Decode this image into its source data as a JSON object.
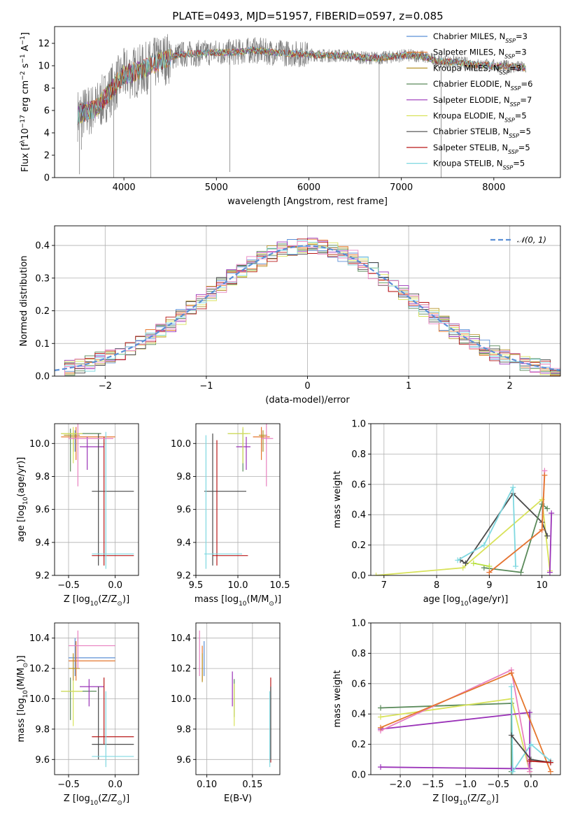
{
  "figure": {
    "title": "PLATE=0493, MJD=51957, FIBERID=0597, z=0.085"
  },
  "colors": {
    "Chabrier MILES": "#5b8fd6",
    "Salpeter MILES": "#e5772d",
    "Kroupa MILES": "#b8942a",
    "Chabrier ELODIE": "#5a8a5a",
    "Salpeter ELODIE": "#9a32b8",
    "Kroupa ELODIE": "#d8e25a",
    "Chabrier STELIB": "#4a4a4a",
    "Salpeter STELIB": "#b81818",
    "Kroupa STELIB": "#7fd8e0",
    "pink": "#e880c0",
    "lime": "#b8e040",
    "data": "#808080"
  },
  "chart_data": [
    {
      "id": "spectrum",
      "type": "line",
      "xlabel": "wavelength [Angstrom, rest frame]",
      "ylabel_parts": [
        "Flux [f",
        "λ",
        "10",
        "−17",
        " erg cm",
        "−2",
        " s",
        "−1",
        " A",
        "−1",
        "]"
      ],
      "xlim": [
        3250,
        8720
      ],
      "ylim": [
        0,
        13.5
      ],
      "xticks": [
        4000,
        5000,
        6000,
        7000,
        8000
      ],
      "yticks": [
        0,
        2,
        4,
        6,
        8,
        10,
        12
      ],
      "legend_position": "top-right",
      "legend": [
        {
          "name": "Chabrier MILES",
          "n": "3"
        },
        {
          "name": "Salpeter MILES",
          "n": "3"
        },
        {
          "name": "Kroupa MILES",
          "n": "3"
        },
        {
          "name": "Chabrier ELODIE",
          "n": "6"
        },
        {
          "name": "Salpeter ELODIE",
          "n": "7"
        },
        {
          "name": "Kroupa ELODIE",
          "n": "5"
        },
        {
          "name": "Chabrier STELIB",
          "n": "5"
        },
        {
          "name": "Salpeter STELIB",
          "n": "5"
        },
        {
          "name": "Kroupa STELIB",
          "n": "5"
        }
      ],
      "continuum": [
        [
          3500,
          5.6
        ],
        [
          3700,
          6.2
        ],
        [
          3900,
          8.2
        ],
        [
          4000,
          9.2
        ],
        [
          4200,
          9.6
        ],
        [
          4400,
          10.5
        ],
        [
          4600,
          11.0
        ],
        [
          4800,
          11.1
        ],
        [
          5000,
          11.2
        ],
        [
          5200,
          11.2
        ],
        [
          5400,
          11.4
        ],
        [
          5600,
          11.2
        ],
        [
          5800,
          11.1
        ],
        [
          6000,
          11.0
        ],
        [
          6200,
          10.9
        ],
        [
          6400,
          10.9
        ],
        [
          6600,
          10.7
        ],
        [
          6800,
          10.7
        ],
        [
          7000,
          10.9
        ],
        [
          7200,
          10.9
        ],
        [
          7400,
          10.4
        ],
        [
          7600,
          10.3
        ],
        [
          7800,
          10.1
        ],
        [
          8000,
          10.0
        ],
        [
          8200,
          9.9
        ],
        [
          8350,
          9.8
        ]
      ],
      "spikes": [
        [
          3520,
          0.3
        ],
        [
          3540,
          2.5
        ],
        [
          3890,
          0.0
        ],
        [
          4290,
          0.0
        ],
        [
          5145,
          0.5
        ],
        [
          6760,
          0.0
        ],
        [
          7430,
          0.0
        ]
      ]
    },
    {
      "id": "residuals",
      "type": "line",
      "xlabel": "(data-model)/error",
      "ylabel": "Normed distribution",
      "xlim": [
        -2.5,
        2.5
      ],
      "ylim": [
        0,
        0.46
      ],
      "xticks": [
        -2,
        -1,
        0,
        1,
        2
      ],
      "yticks": [
        0.0,
        0.1,
        0.2,
        0.3,
        0.4
      ],
      "legend": "𝒩(0, 1)",
      "legend_position": "top-right",
      "grid": true
    },
    {
      "id": "age_vs_Z",
      "type": "scatter",
      "xlabel_parts": [
        "Z [log",
        "10",
        "(Z/Z",
        "⊙",
        ")]"
      ],
      "ylabel_parts": [
        "age  [log",
        "10",
        "(age/yr)]"
      ],
      "xlim": [
        -0.65,
        0.25
      ],
      "ylim": [
        9.2,
        10.12
      ],
      "xticks": [
        -0.5,
        0.0
      ],
      "yticks": [
        9.2,
        9.4,
        9.6,
        9.8,
        10.0
      ],
      "grid": true,
      "points": [
        {
          "c": "Chabrier MILES",
          "x": -0.43,
          "xe": [
            -0.48,
            -0.4
          ],
          "y": 10.04,
          "ye": [
            9.95,
            10.08
          ]
        },
        {
          "c": "Salpeter MILES",
          "x": -0.42,
          "xe": [
            -0.58,
            0.0
          ],
          "y": 10.04,
          "ye": [
            9.9,
            10.1
          ]
        },
        {
          "c": "Kroupa MILES",
          "x": -0.45,
          "xe": [
            -0.55,
            -0.38
          ],
          "y": 10.05,
          "ye": [
            9.95,
            10.08
          ]
        },
        {
          "c": "Chabrier ELODIE",
          "x": -0.48,
          "xe": [
            -0.58,
            -0.15
          ],
          "y": 10.06,
          "ye": [
            9.83,
            10.09
          ]
        },
        {
          "c": "Salpeter ELODIE",
          "x": -0.3,
          "xe": [
            -0.38,
            -0.12
          ],
          "y": 9.98,
          "ye": [
            9.84,
            10.04
          ]
        },
        {
          "c": "Kroupa ELODIE",
          "x": -0.45,
          "xe": [
            -0.58,
            -0.35
          ],
          "y": 10.06,
          "ye": [
            9.88,
            10.1
          ]
        },
        {
          "c": "Chabrier STELIB",
          "x": -0.18,
          "xe": [
            -0.25,
            0.2
          ],
          "y": 9.71,
          "ye": [
            9.26,
            10.06
          ]
        },
        {
          "c": "Salpeter STELIB",
          "x": -0.12,
          "xe": [
            -0.25,
            0.2
          ],
          "y": 9.32,
          "ye": [
            9.26,
            10.04
          ]
        },
        {
          "c": "Kroupa STELIB",
          "x": -0.1,
          "xe": [
            -0.25,
            0.2
          ],
          "y": 9.33,
          "ye": [
            9.24,
            10.07
          ]
        },
        {
          "c": "pink",
          "x": -0.4,
          "xe": [
            -0.5,
            -0.02
          ],
          "y": 10.03,
          "ye": [
            9.74,
            10.12
          ]
        }
      ]
    },
    {
      "id": "age_vs_mass",
      "type": "scatter",
      "xlabel_parts": [
        "mass [log",
        "10",
        "(M/M",
        "⊙",
        ")]"
      ],
      "ylabel": "",
      "xlim": [
        9.5,
        10.5
      ],
      "ylim": [
        9.2,
        10.12
      ],
      "xticks": [
        9.5,
        10.0,
        10.5
      ],
      "yticks": [
        9.2,
        9.4,
        9.6,
        9.8,
        10.0
      ],
      "grid": true,
      "points": [
        {
          "c": "Chabrier MILES",
          "x": 10.28,
          "xe": [
            10.26,
            10.3
          ],
          "y": 10.04,
          "ye": [
            9.95,
            10.08
          ]
        },
        {
          "c": "Salpeter MILES",
          "x": 10.28,
          "xe": [
            10.18,
            10.38
          ],
          "y": 10.04,
          "ye": [
            9.9,
            10.1
          ]
        },
        {
          "c": "Kroupa MILES",
          "x": 10.3,
          "xe": [
            10.25,
            10.35
          ],
          "y": 10.05,
          "ye": [
            9.95,
            10.08
          ]
        },
        {
          "c": "Chabrier ELODIE",
          "x": 10.06,
          "xe": [
            9.88,
            10.12
          ],
          "y": 10.06,
          "ye": [
            9.83,
            10.09
          ]
        },
        {
          "c": "Salpeter ELODIE",
          "x": 10.1,
          "xe": [
            9.98,
            10.15
          ],
          "y": 9.98,
          "ye": [
            9.84,
            10.04
          ]
        },
        {
          "c": "Kroupa ELODIE",
          "x": 10.06,
          "xe": [
            9.88,
            10.15
          ],
          "y": 10.06,
          "ye": [
            9.88,
            10.1
          ]
        },
        {
          "c": "Chabrier STELIB",
          "x": 9.7,
          "xe": [
            9.6,
            10.1
          ],
          "y": 9.71,
          "ye": [
            9.26,
            10.06
          ]
        },
        {
          "c": "Salpeter STELIB",
          "x": 9.75,
          "xe": [
            9.7,
            10.12
          ],
          "y": 9.32,
          "ye": [
            9.26,
            10.02
          ]
        },
        {
          "c": "Kroupa STELIB",
          "x": 9.62,
          "xe": [
            9.6,
            10.05
          ],
          "y": 9.33,
          "ye": [
            9.24,
            10.05
          ]
        },
        {
          "c": "pink",
          "x": 10.34,
          "xe": [
            10.28,
            10.42
          ],
          "y": 10.03,
          "ye": [
            9.74,
            10.12
          ]
        }
      ]
    },
    {
      "id": "sfh_age",
      "type": "line",
      "xlabel_parts": [
        "age  [log",
        "10",
        "(age/yr)]"
      ],
      "ylabel": "mass weight",
      "xlim": [
        6.75,
        10.35
      ],
      "ylim": [
        0,
        1.0
      ],
      "xticks": [
        7,
        8,
        9,
        10
      ],
      "yticks": [
        0.0,
        0.2,
        0.4,
        0.6,
        0.8,
        1.0
      ],
      "grid": true,
      "series": [
        {
          "c": "Kroupa ELODIE",
          "x": [
            6.85,
            8.5,
            10.0,
            10.15
          ],
          "y": [
            0.0,
            0.05,
            0.5,
            0.03
          ]
        },
        {
          "c": "Chabrier STELIB",
          "x": [
            8.45,
            8.55,
            9.45,
            10.0,
            10.1
          ],
          "y": [
            0.1,
            0.08,
            0.54,
            0.35,
            0.26
          ]
        },
        {
          "c": "Kroupa STELIB",
          "x": [
            8.4,
            8.9,
            9.45,
            9.5
          ],
          "y": [
            0.1,
            0.2,
            0.58,
            0.06
          ]
        },
        {
          "c": "Chabrier ELODIE",
          "x": [
            8.9,
            9.6,
            10.0,
            10.1
          ],
          "y": [
            0.05,
            0.02,
            0.47,
            0.44
          ]
        },
        {
          "c": "Salpeter ELODIE",
          "x": [
            10.15,
            10.18
          ],
          "y": [
            0.02,
            0.41
          ]
        },
        {
          "c": "pink",
          "x": [
            9.0,
            10.0,
            10.05
          ],
          "y": [
            0.02,
            0.3,
            0.69
          ]
        },
        {
          "c": "Salpeter MILES",
          "x": [
            9.0,
            10.0,
            10.05
          ],
          "y": [
            0.02,
            0.3,
            0.66
          ]
        },
        {
          "c": "lime",
          "x": [
            8.7,
            9.0
          ],
          "y": [
            0.08,
            0.06
          ]
        }
      ]
    },
    {
      "id": "mass_vs_Z",
      "type": "scatter",
      "xlabel_parts": [
        "Z [log",
        "10",
        "(Z/Z",
        "⊙",
        ")]"
      ],
      "ylabel_parts": [
        "mass [log",
        "10",
        "(M/M",
        "⊙",
        ")]"
      ],
      "xlim": [
        -0.65,
        0.25
      ],
      "ylim": [
        9.5,
        10.5
      ],
      "xticks": [
        -0.5,
        0.0
      ],
      "yticks": [
        9.6,
        9.8,
        10.0,
        10.2,
        10.4
      ],
      "grid": true,
      "points": [
        {
          "c": "Chabrier MILES",
          "x": -0.43,
          "xe": [
            -0.5,
            0.0
          ],
          "y": 10.27,
          "ye": [
            10.15,
            10.4
          ]
        },
        {
          "c": "Salpeter MILES",
          "x": -0.42,
          "xe": [
            -0.5,
            0.0
          ],
          "y": 10.25,
          "ye": [
            10.12,
            10.38
          ]
        },
        {
          "c": "Kroupa MILES",
          "x": -0.45,
          "xe": [
            -0.5,
            -0.38
          ],
          "y": 10.2,
          "ye": [
            10.12,
            10.3
          ]
        },
        {
          "c": "Chabrier ELODIE",
          "x": -0.48,
          "xe": [
            -0.58,
            -0.2
          ],
          "y": 10.05,
          "ye": [
            9.86,
            10.14
          ]
        },
        {
          "c": "Salpeter ELODIE",
          "x": -0.28,
          "xe": [
            -0.38,
            -0.12
          ],
          "y": 10.08,
          "ye": [
            9.95,
            10.13
          ]
        },
        {
          "c": "Kroupa ELODIE",
          "x": -0.45,
          "xe": [
            -0.58,
            -0.35
          ],
          "y": 10.05,
          "ye": [
            9.82,
            10.12
          ]
        },
        {
          "c": "Chabrier STELIB",
          "x": -0.18,
          "xe": [
            -0.25,
            0.2
          ],
          "y": 9.7,
          "ye": [
            9.6,
            10.08
          ]
        },
        {
          "c": "Salpeter STELIB",
          "x": -0.12,
          "xe": [
            -0.25,
            0.2
          ],
          "y": 9.75,
          "ye": [
            9.7,
            10.14
          ]
        },
        {
          "c": "Kroupa STELIB",
          "x": -0.1,
          "xe": [
            -0.25,
            0.2
          ],
          "y": 9.62,
          "ye": [
            9.55,
            10.05
          ]
        },
        {
          "c": "pink",
          "x": -0.4,
          "xe": [
            -0.5,
            0.0
          ],
          "y": 10.35,
          "ye": [
            10.2,
            10.45
          ]
        }
      ]
    },
    {
      "id": "mass_vs_EBV",
      "type": "scatter",
      "xlabel": "E(B-V)",
      "ylabel": "",
      "xlim": [
        0.088,
        0.18
      ],
      "ylim": [
        9.5,
        10.5
      ],
      "xticks": [
        0.1,
        0.15
      ],
      "yticks": [
        9.6,
        9.8,
        10.0,
        10.2,
        10.4
      ],
      "grid": true,
      "points": [
        {
          "c": "Chabrier MILES",
          "x": 0.097,
          "y": 10.27,
          "ye": [
            10.15,
            10.38
          ]
        },
        {
          "c": "Salpeter MILES",
          "x": 0.095,
          "y": 10.25,
          "ye": [
            10.12,
            10.35
          ]
        },
        {
          "c": "Kroupa MILES",
          "x": 0.095,
          "y": 10.2,
          "ye": [
            10.11,
            10.3
          ]
        },
        {
          "c": "pink",
          "x": 0.092,
          "y": 10.35,
          "ye": [
            10.15,
            10.45
          ]
        },
        {
          "c": "Salpeter ELODIE",
          "x": 0.128,
          "y": 10.08,
          "ye": [
            9.95,
            10.18
          ]
        },
        {
          "c": "Chabrier ELODIE",
          "x": 0.13,
          "y": 10.05,
          "ye": [
            9.88,
            10.13
          ]
        },
        {
          "c": "Kroupa ELODIE",
          "x": 0.13,
          "y": 10.05,
          "ye": [
            9.82,
            10.1
          ]
        },
        {
          "c": "Salpeter STELIB",
          "x": 0.17,
          "y": 9.75,
          "ye": [
            9.58,
            10.14
          ]
        },
        {
          "c": "Chabrier STELIB",
          "x": 0.17,
          "y": 9.7,
          "ye": [
            9.6,
            10.08
          ]
        },
        {
          "c": "Kroupa STELIB",
          "x": 0.169,
          "y": 9.62,
          "ye": [
            9.55,
            10.05
          ]
        }
      ]
    },
    {
      "id": "sfh_Z",
      "type": "line",
      "xlabel_parts": [
        "Z [log",
        "10",
        "(Z/Z",
        "⊙",
        ")]"
      ],
      "ylabel": "mass weight",
      "xlim": [
        -2.45,
        0.45
      ],
      "ylim": [
        0,
        1.0
      ],
      "xticks": [
        -2.0,
        -1.5,
        -1.0,
        -0.5,
        0.0
      ],
      "yticks": [
        0.0,
        0.2,
        0.4,
        0.6,
        0.8,
        1.0
      ],
      "grid": true,
      "series": [
        {
          "c": "Chabrier ELODIE",
          "x": [
            -2.3,
            -0.3,
            -0.3
          ],
          "y": [
            0.44,
            0.47,
            0.02
          ]
        },
        {
          "c": "Kroupa ELODIE",
          "x": [
            -2.3,
            -0.3,
            -0.02
          ],
          "y": [
            0.38,
            0.5,
            0.02
          ]
        },
        {
          "c": "Salpeter ELODIE",
          "x": [
            -2.3,
            -0.3,
            -0.02,
            -0.02,
            -2.3
          ],
          "y": [
            0.05,
            0.04,
            0.04,
            0.41,
            0.3
          ]
        },
        {
          "c": "pink",
          "x": [
            -2.3,
            -0.3,
            -0.02
          ],
          "y": [
            0.29,
            0.69,
            0.02
          ]
        },
        {
          "c": "Salpeter MILES",
          "x": [
            -2.3,
            -0.3,
            0.3
          ],
          "y": [
            0.31,
            0.67,
            0.02
          ]
        },
        {
          "c": "Kroupa STELIB",
          "x": [
            -0.3,
            -0.28,
            0.0,
            0.3
          ],
          "y": [
            0.58,
            0.02,
            0.2,
            0.09
          ]
        },
        {
          "c": "Chabrier STELIB",
          "x": [
            -0.3,
            0.0,
            0.3
          ],
          "y": [
            0.26,
            0.1,
            0.08
          ]
        },
        {
          "c": "Salpeter STELIB",
          "x": [
            -0.02,
            0.3
          ],
          "y": [
            0.09,
            0.08
          ]
        }
      ]
    }
  ]
}
